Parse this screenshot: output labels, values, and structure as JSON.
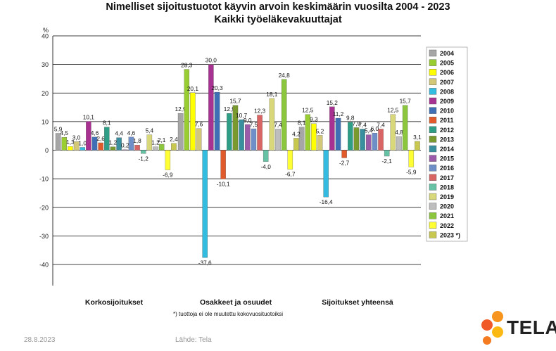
{
  "title": "Nimelliset sijoitustuotot käyvin arvoin keskimäärin vuosilta 2004 - 2023",
  "subtitle": "Kaikki työeläkevakuuttajat",
  "footer": {
    "date": "28.8.2023",
    "source": "Lähde: Tela",
    "logo_text": "TELA"
  },
  "chart_data": {
    "type": "bar",
    "title": "Nimelliset sijoitustuotot käyvin arvoin keskimäärin vuosilta 2004 - 2023",
    "subtitle": "Kaikki työeläkevakuuttajat",
    "ylabel": "%",
    "ylim": [
      -40,
      40
    ],
    "yticks": [
      -40,
      -30,
      -20,
      -10,
      0,
      10,
      20,
      30,
      40
    ],
    "grid": true,
    "legend": "right",
    "footnote": "*) tuottoja ei ole muutettu kokovuosituotoiksi",
    "categories": [
      "Korkosijoitukset",
      "Osakkeet ja osuudet",
      "Sijoitukset yhteensä"
    ],
    "series": [
      {
        "name": "2004",
        "color": "#A6A6A6",
        "values": [
          5.9,
          12.9,
          8.1
        ]
      },
      {
        "name": "2005",
        "color": "#9ACD32",
        "values": [
          4.5,
          28.3,
          12.5
        ]
      },
      {
        "name": "2006",
        "color": "#FFFF00",
        "values": [
          1.3,
          20.1,
          9.3
        ]
      },
      {
        "name": "2007",
        "color": "#D2C878",
        "values": [
          3.0,
          7.6,
          5.2
        ]
      },
      {
        "name": "2008",
        "color": "#33BBE0",
        "values": [
          1.0,
          -37.6,
          -16.4
        ]
      },
      {
        "name": "2009",
        "color": "#A83292",
        "values": [
          10.1,
          30.0,
          15.2
        ]
      },
      {
        "name": "2010",
        "color": "#3F6FB5",
        "values": [
          4.6,
          20.3,
          11.2
        ]
      },
      {
        "name": "2011",
        "color": "#E05A2B",
        "values": [
          2.6,
          -10.1,
          -2.7
        ]
      },
      {
        "name": "2012",
        "color": "#2F9E86",
        "values": [
          8.1,
          12.9,
          9.8
        ]
      },
      {
        "name": "2013",
        "color": "#7A9A2F",
        "values": [
          1.2,
          15.7,
          7.9
        ]
      },
      {
        "name": "2014",
        "color": "#3A8F9E",
        "values": [
          4.4,
          10.7,
          7.4
        ]
      },
      {
        "name": "2015",
        "color": "#9C5BA8",
        "values": [
          0.2,
          9.0,
          5.4
        ]
      },
      {
        "name": "2016",
        "color": "#6F8FC8",
        "values": [
          4.6,
          7.5,
          6.0
        ]
      },
      {
        "name": "2017",
        "color": "#D96464",
        "values": [
          1.8,
          12.3,
          7.4
        ]
      },
      {
        "name": "2018",
        "color": "#66C2A5",
        "values": [
          -1.2,
          -4.0,
          -2.1
        ]
      },
      {
        "name": "2019",
        "color": "#D8D87A",
        "values": [
          5.4,
          18.1,
          12.5
        ]
      },
      {
        "name": "2020",
        "color": "#BDBDBD",
        "values": [
          1.2,
          7.4,
          4.8
        ]
      },
      {
        "name": "2021",
        "color": "#8CC63F",
        "values": [
          2.1,
          24.8,
          15.7
        ]
      },
      {
        "name": "2022",
        "color": "#FFFF33",
        "values": [
          -6.9,
          -6.7,
          -5.9
        ]
      },
      {
        "name": "2023 *)",
        "color": "#C8C850",
        "values": [
          2.4,
          4.2,
          3.1
        ]
      }
    ]
  }
}
